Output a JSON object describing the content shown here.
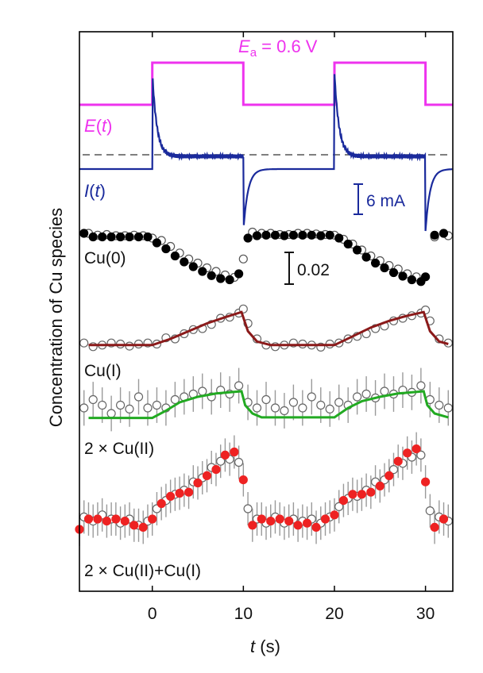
{
  "chart_data": {
    "type": "line",
    "title": "",
    "xlabel": {
      "var": "t",
      "unit": " (s)"
    },
    "ylabel": "Concentration of Cu species",
    "xlim": [
      -8,
      33
    ],
    "xticks": [
      0,
      10,
      20,
      30
    ],
    "xtick_labels": [
      "0",
      "10",
      "20",
      "30"
    ],
    "scale_bars": {
      "current": "6 mA",
      "concentration": "0.02"
    },
    "potential_label": {
      "E": "E",
      "sub": "a",
      "rest": " = 0.6 V"
    },
    "colors": {
      "potential": "#ee33ee",
      "current": "#1a2a9c",
      "cu0": "#000000",
      "cu1": "#8b1a1a",
      "cu2": "#22aa22",
      "sum": "#ee2222",
      "errorbar": "#9a9a9a",
      "dashed": "#555555"
    },
    "series": [
      {
        "key": "E",
        "label_var": "E",
        "label_arg": "t",
        "kind": "step",
        "points": [
          [
            -8,
            0
          ],
          [
            0,
            0
          ],
          [
            0,
            1
          ],
          [
            10,
            1
          ],
          [
            10,
            0
          ],
          [
            20,
            0
          ],
          [
            20,
            1
          ],
          [
            30,
            1
          ],
          [
            30,
            0
          ],
          [
            33,
            0
          ]
        ]
      },
      {
        "key": "I",
        "label_var": "I",
        "label_arg": "t",
        "kind": "current",
        "baseline_level": -0.9,
        "on_level": -0.1,
        "spike": 5.2,
        "neg_spike": -4.8,
        "decay_time_s": 0.5
      },
      {
        "key": "Cu0",
        "name": "Cu(0)",
        "filled": [
          [
            -7.5,
            0.88
          ],
          [
            -6.5,
            0.82
          ],
          [
            -5.5,
            0.82
          ],
          [
            -4.5,
            0.82
          ],
          [
            -3.5,
            0.82
          ],
          [
            -2.5,
            0.82
          ],
          [
            -1.5,
            0.82
          ],
          [
            -0.5,
            0.82
          ],
          [
            0.5,
            0.72
          ],
          [
            1.5,
            0.62
          ],
          [
            2.5,
            0.5
          ],
          [
            3.5,
            0.4
          ],
          [
            4.5,
            0.32
          ],
          [
            5.5,
            0.24
          ],
          [
            6.5,
            0.17
          ],
          [
            7.5,
            0.12
          ],
          [
            8.5,
            0.1
          ],
          [
            9.5,
            0.2
          ],
          [
            10.5,
            0.8
          ],
          [
            11.5,
            0.84
          ],
          [
            12.5,
            0.85
          ],
          [
            13.5,
            0.85
          ],
          [
            14.5,
            0.84
          ],
          [
            15.5,
            0.85
          ],
          [
            16.5,
            0.85
          ],
          [
            17.5,
            0.85
          ],
          [
            18.5,
            0.84
          ],
          [
            19.5,
            0.85
          ],
          [
            20.5,
            0.8
          ],
          [
            21.5,
            0.7
          ],
          [
            22.5,
            0.6
          ],
          [
            23.5,
            0.48
          ],
          [
            24.5,
            0.38
          ],
          [
            25.5,
            0.3
          ],
          [
            26.5,
            0.22
          ],
          [
            27.5,
            0.16
          ],
          [
            28.5,
            0.1
          ],
          [
            29.5,
            0.07
          ],
          [
            30,
            0.15
          ],
          [
            31,
            0.85
          ],
          [
            32,
            0.88
          ]
        ],
        "open": [
          [
            -7,
            0.88
          ],
          [
            -6,
            0.85
          ],
          [
            -5,
            0.86
          ],
          [
            -4,
            0.84
          ],
          [
            -3,
            0.84
          ],
          [
            -2,
            0.85
          ],
          [
            -1,
            0.84
          ],
          [
            0,
            0.8
          ],
          [
            1,
            0.76
          ],
          [
            2,
            0.66
          ],
          [
            3,
            0.55
          ],
          [
            4,
            0.45
          ],
          [
            5,
            0.38
          ],
          [
            6,
            0.3
          ],
          [
            7,
            0.24
          ],
          [
            8,
            0.18
          ],
          [
            9,
            0.14
          ],
          [
            10,
            0.45
          ],
          [
            11,
            0.9
          ],
          [
            12,
            0.88
          ],
          [
            13,
            0.88
          ],
          [
            14,
            0.86
          ],
          [
            15,
            0.86
          ],
          [
            16,
            0.88
          ],
          [
            17,
            0.88
          ],
          [
            18,
            0.87
          ],
          [
            19,
            0.86
          ],
          [
            20,
            0.85
          ],
          [
            21,
            0.78
          ],
          [
            22,
            0.7
          ],
          [
            23,
            0.6
          ],
          [
            24,
            0.5
          ],
          [
            25,
            0.42
          ],
          [
            26,
            0.34
          ],
          [
            27,
            0.28
          ],
          [
            28,
            0.2
          ],
          [
            29,
            0.15
          ],
          [
            31,
            0.82
          ],
          [
            32.5,
            0.84
          ]
        ]
      },
      {
        "key": "Cu1",
        "name": "Cu(I)",
        "fit": [
          [
            -7,
            0.08
          ],
          [
            0,
            0.08
          ],
          [
            2,
            0.2
          ],
          [
            4,
            0.35
          ],
          [
            6,
            0.5
          ],
          [
            8,
            0.62
          ],
          [
            9.8,
            0.72
          ],
          [
            10.5,
            0.35
          ],
          [
            11.5,
            0.15
          ],
          [
            13,
            0.08
          ],
          [
            20,
            0.08
          ],
          [
            22,
            0.25
          ],
          [
            24,
            0.42
          ],
          [
            26,
            0.55
          ],
          [
            28,
            0.65
          ],
          [
            29.8,
            0.72
          ],
          [
            30.5,
            0.35
          ],
          [
            31.5,
            0.15
          ],
          [
            32.5,
            0.1
          ]
        ],
        "open": [
          [
            -7.5,
            0.12
          ],
          [
            -6.5,
            0.05
          ],
          [
            -5.5,
            0.08
          ],
          [
            -4.5,
            0.12
          ],
          [
            -3.5,
            0.1
          ],
          [
            -2.5,
            0.06
          ],
          [
            -1.5,
            0.1
          ],
          [
            -0.5,
            0.12
          ],
          [
            0.5,
            0.1
          ],
          [
            1.5,
            0.22
          ],
          [
            2.5,
            0.2
          ],
          [
            3.5,
            0.3
          ],
          [
            4.5,
            0.38
          ],
          [
            5.5,
            0.4
          ],
          [
            6.5,
            0.48
          ],
          [
            7.5,
            0.6
          ],
          [
            8.5,
            0.62
          ],
          [
            9.5,
            0.7
          ],
          [
            10,
            0.78
          ],
          [
            10.5,
            0.5
          ],
          [
            11.5,
            0.2
          ],
          [
            12.5,
            0.08
          ],
          [
            13.5,
            0.05
          ],
          [
            14.5,
            0.08
          ],
          [
            15.5,
            0.12
          ],
          [
            16.5,
            0.1
          ],
          [
            17.5,
            0.08
          ],
          [
            18.5,
            0.04
          ],
          [
            19.5,
            0.1
          ],
          [
            20.5,
            0.12
          ],
          [
            21.5,
            0.2
          ],
          [
            22.5,
            0.25
          ],
          [
            23.5,
            0.3
          ],
          [
            24.5,
            0.4
          ],
          [
            25.5,
            0.45
          ],
          [
            26.5,
            0.55
          ],
          [
            27.5,
            0.6
          ],
          [
            28.5,
            0.65
          ],
          [
            29.5,
            0.7
          ],
          [
            30,
            0.76
          ],
          [
            30.5,
            0.55
          ],
          [
            31.5,
            0.2
          ],
          [
            32.5,
            0.12
          ]
        ]
      },
      {
        "key": "Cu2",
        "name": "2 × Cu(II)",
        "fit": [
          [
            -7,
            0.12
          ],
          [
            0,
            0.12
          ],
          [
            1.5,
            0.25
          ],
          [
            3,
            0.4
          ],
          [
            5,
            0.5
          ],
          [
            7,
            0.56
          ],
          [
            9.8,
            0.6
          ],
          [
            10.2,
            0.35
          ],
          [
            11,
            0.2
          ],
          [
            12,
            0.13
          ],
          [
            20,
            0.13
          ],
          [
            21.5,
            0.3
          ],
          [
            23,
            0.42
          ],
          [
            25,
            0.5
          ],
          [
            27,
            0.56
          ],
          [
            29.8,
            0.6
          ],
          [
            30.2,
            0.35
          ],
          [
            31,
            0.2
          ],
          [
            32.5,
            0.13
          ]
        ],
        "open": [
          [
            -7.5,
            0.3
          ],
          [
            -6.5,
            0.45
          ],
          [
            -5.5,
            0.35
          ],
          [
            -4.5,
            0.2
          ],
          [
            -3.5,
            0.35
          ],
          [
            -2.5,
            0.28
          ],
          [
            -1.5,
            0.5
          ],
          [
            -0.5,
            0.3
          ],
          [
            0.5,
            0.35
          ],
          [
            1.5,
            0.3
          ],
          [
            2.5,
            0.45
          ],
          [
            3.5,
            0.5
          ],
          [
            4.5,
            0.55
          ],
          [
            5.5,
            0.6
          ],
          [
            6.5,
            0.5
          ],
          [
            7.5,
            0.62
          ],
          [
            8.5,
            0.55
          ],
          [
            9.5,
            0.7
          ],
          [
            10.5,
            0.4
          ],
          [
            11.5,
            0.3
          ],
          [
            12.5,
            0.45
          ],
          [
            13.5,
            0.3
          ],
          [
            14.5,
            0.25
          ],
          [
            15.5,
            0.4
          ],
          [
            16.5,
            0.3
          ],
          [
            17.5,
            0.5
          ],
          [
            18.5,
            0.35
          ],
          [
            19.5,
            0.28
          ],
          [
            20.5,
            0.4
          ],
          [
            21.5,
            0.35
          ],
          [
            22.5,
            0.5
          ],
          [
            23.5,
            0.55
          ],
          [
            24.5,
            0.48
          ],
          [
            25.5,
            0.6
          ],
          [
            26.5,
            0.55
          ],
          [
            27.5,
            0.62
          ],
          [
            28.5,
            0.58
          ],
          [
            29.5,
            0.7
          ],
          [
            30.5,
            0.45
          ],
          [
            31.5,
            0.35
          ],
          [
            32.5,
            0.3
          ]
        ],
        "errorbar": 0.32
      },
      {
        "key": "Sum",
        "name": "2 × Cu(II)+Cu(I)",
        "filled": [
          [
            -8,
            0.1
          ],
          [
            -7,
            0.2
          ],
          [
            -6,
            0.2
          ],
          [
            -5,
            0.18
          ],
          [
            -4,
            0.2
          ],
          [
            -3,
            0.18
          ],
          [
            -2,
            0.14
          ],
          [
            -1,
            0.12
          ],
          [
            0,
            0.2
          ],
          [
            1,
            0.35
          ],
          [
            2,
            0.42
          ],
          [
            3,
            0.45
          ],
          [
            4,
            0.46
          ],
          [
            5,
            0.55
          ],
          [
            6,
            0.62
          ],
          [
            7,
            0.68
          ],
          [
            8,
            0.82
          ],
          [
            9,
            0.85
          ],
          [
            10,
            0.58
          ],
          [
            11,
            0.14
          ],
          [
            12,
            0.2
          ],
          [
            13,
            0.18
          ],
          [
            14,
            0.2
          ],
          [
            15,
            0.18
          ],
          [
            16,
            0.14
          ],
          [
            17,
            0.16
          ],
          [
            18,
            0.12
          ],
          [
            19,
            0.2
          ],
          [
            20,
            0.24
          ],
          [
            21,
            0.38
          ],
          [
            22,
            0.44
          ],
          [
            23,
            0.44
          ],
          [
            24,
            0.46
          ],
          [
            25,
            0.52
          ],
          [
            26,
            0.62
          ],
          [
            27,
            0.76
          ],
          [
            28,
            0.84
          ],
          [
            29,
            0.88
          ],
          [
            30,
            0.56
          ],
          [
            31,
            0.12
          ],
          [
            32,
            0.2
          ]
        ],
        "open": [
          [
            -7.5,
            0.22
          ],
          [
            -6.5,
            0.18
          ],
          [
            -5.5,
            0.24
          ],
          [
            -4.5,
            0.2
          ],
          [
            -3.5,
            0.16
          ],
          [
            -2.5,
            0.2
          ],
          [
            -1.5,
            0.14
          ],
          [
            -0.5,
            0.18
          ],
          [
            0.5,
            0.3
          ],
          [
            1.5,
            0.38
          ],
          [
            2.5,
            0.44
          ],
          [
            3.5,
            0.48
          ],
          [
            4.5,
            0.56
          ],
          [
            5.5,
            0.6
          ],
          [
            6.5,
            0.7
          ],
          [
            7.5,
            0.76
          ],
          [
            8.5,
            0.78
          ],
          [
            9.5,
            0.75
          ],
          [
            10.5,
            0.3
          ],
          [
            11.5,
            0.2
          ],
          [
            12.5,
            0.16
          ],
          [
            13.5,
            0.22
          ],
          [
            14.5,
            0.16
          ],
          [
            15.5,
            0.2
          ],
          [
            16.5,
            0.18
          ],
          [
            17.5,
            0.2
          ],
          [
            18.5,
            0.16
          ],
          [
            19.5,
            0.22
          ],
          [
            20.5,
            0.32
          ],
          [
            21.5,
            0.4
          ],
          [
            22.5,
            0.42
          ],
          [
            23.5,
            0.48
          ],
          [
            24.5,
            0.56
          ],
          [
            25.5,
            0.58
          ],
          [
            26.5,
            0.68
          ],
          [
            27.5,
            0.74
          ],
          [
            28.5,
            0.8
          ],
          [
            29.5,
            0.82
          ],
          [
            30.5,
            0.28
          ],
          [
            31.5,
            0.22
          ],
          [
            32.5,
            0.18
          ]
        ],
        "errorbar": 0.3
      }
    ]
  }
}
